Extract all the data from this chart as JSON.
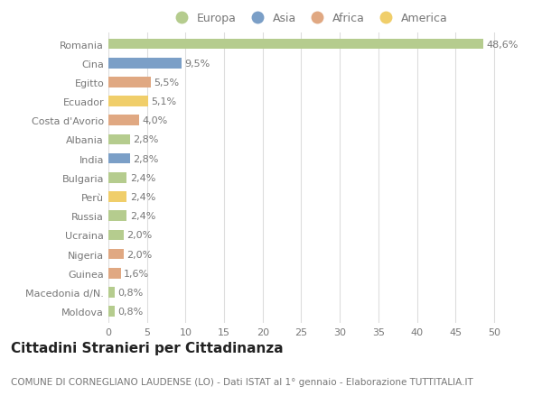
{
  "countries": [
    "Moldova",
    "Macedonia d/N.",
    "Guinea",
    "Nigeria",
    "Ucraina",
    "Russia",
    "Perù",
    "Bulgaria",
    "India",
    "Albania",
    "Costa d'Avorio",
    "Ecuador",
    "Egitto",
    "Cina",
    "Romania"
  ],
  "values": [
    0.8,
    0.8,
    1.6,
    2.0,
    2.0,
    2.4,
    2.4,
    2.4,
    2.8,
    2.8,
    4.0,
    5.1,
    5.5,
    9.5,
    48.6
  ],
  "labels": [
    "0,8%",
    "0,8%",
    "1,6%",
    "2,0%",
    "2,0%",
    "2,4%",
    "2,4%",
    "2,4%",
    "2,8%",
    "2,8%",
    "4,0%",
    "5,1%",
    "5,5%",
    "9,5%",
    "48,6%"
  ],
  "continents": [
    "Europa",
    "Europa",
    "Africa",
    "Africa",
    "Europa",
    "Europa",
    "America",
    "Europa",
    "Asia",
    "Europa",
    "Africa",
    "America",
    "Africa",
    "Asia",
    "Europa"
  ],
  "continent_colors": {
    "Europa": "#b5cc8e",
    "Asia": "#7b9fc7",
    "Africa": "#e0a882",
    "America": "#f0ce6a"
  },
  "legend_order": [
    "Europa",
    "Asia",
    "Africa",
    "America"
  ],
  "title": "Cittadini Stranieri per Cittadinanza",
  "subtitle": "COMUNE DI CORNEGLIANO LAUDENSE (LO) - Dati ISTAT al 1° gennaio - Elaborazione TUTTITALIA.IT",
  "xlim": [
    0,
    52
  ],
  "xticks": [
    0,
    5,
    10,
    15,
    20,
    25,
    30,
    35,
    40,
    45,
    50
  ],
  "bg_color": "#ffffff",
  "grid_color": "#dddddd",
  "bar_height": 0.55,
  "title_fontsize": 11,
  "subtitle_fontsize": 7.5,
  "label_fontsize": 8,
  "tick_fontsize": 8,
  "legend_fontsize": 9,
  "text_color": "#777777",
  "title_color": "#222222"
}
